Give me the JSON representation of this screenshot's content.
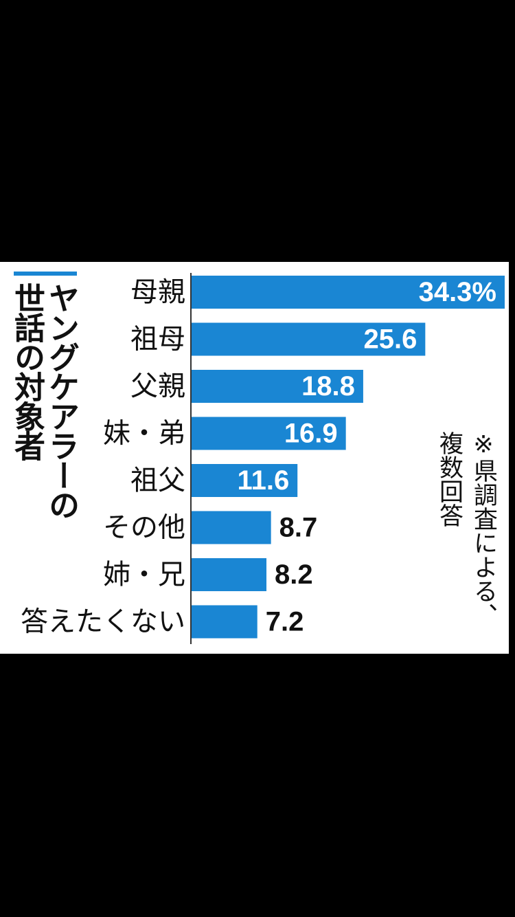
{
  "title": {
    "line1": "ヤングケアラーの",
    "line2": "世話の対象者"
  },
  "note": {
    "line1": "※県調査による、",
    "line2": "複数回答"
  },
  "colors": {
    "bar": "#1a86d3",
    "inside_label": "#ffffff",
    "outside_label": "#111111",
    "axis": "#333333",
    "background": "#ffffff"
  },
  "chart_data": {
    "type": "bar",
    "orientation": "horizontal",
    "categories": [
      "母親",
      "祖母",
      "父親",
      "妹・弟",
      "祖父",
      "その他",
      "姉・兄",
      "答えたくない"
    ],
    "values": [
      34.3,
      25.6,
      18.8,
      16.9,
      11.6,
      8.7,
      8.2,
      7.2
    ],
    "value_labels": [
      "34.3%",
      "25.6",
      "18.8",
      "16.9",
      "11.6",
      "8.7",
      "8.2",
      "7.2"
    ],
    "unit": "%",
    "xlim": [
      0,
      34.3
    ],
    "grid": false
  }
}
